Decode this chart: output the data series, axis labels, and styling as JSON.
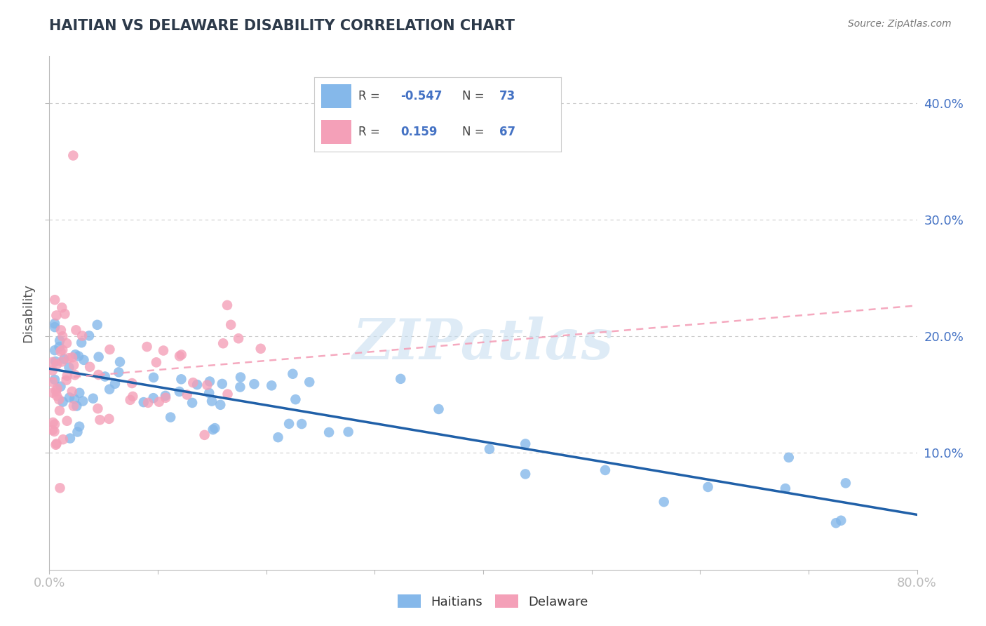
{
  "title": "HAITIAN VS DELAWARE DISABILITY CORRELATION CHART",
  "source": "Source: ZipAtlas.com",
  "ylabel": "Disability",
  "ytick_values": [
    0.1,
    0.2,
    0.3,
    0.4
  ],
  "ytick_labels": [
    "10.0%",
    "20.0%",
    "30.0%",
    "40.0%"
  ],
  "xtick_values": [
    0.0,
    0.1,
    0.2,
    0.3,
    0.4,
    0.5,
    0.6,
    0.7,
    0.8
  ],
  "xtick_labels": [
    "0.0%",
    "",
    "",
    "",
    "",
    "",
    "",
    "",
    "80.0%"
  ],
  "xlim": [
    0.0,
    0.8
  ],
  "ylim": [
    0.0,
    0.44
  ],
  "R_blue": -0.547,
  "N_blue": 73,
  "R_pink": 0.159,
  "N_pink": 67,
  "blue_color": "#85B8EA",
  "pink_color": "#F4A0B8",
  "blue_line_color": "#2060A8",
  "pink_line_color": "#E8A0B8",
  "title_color": "#2d3a4a",
  "axis_label_color": "#4472C4",
  "grid_color": "#cccccc",
  "watermark_color": "#C8DFF0",
  "legend_border_color": "#cccccc",
  "bottom_legend_labels": [
    "Haitians",
    "Delaware"
  ]
}
